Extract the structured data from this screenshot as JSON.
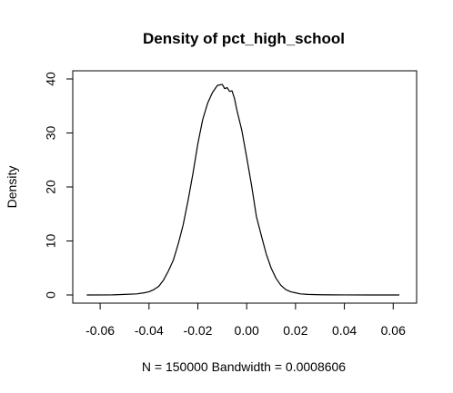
{
  "chart_data": {
    "type": "line",
    "title": "Density of pct_high_school",
    "xlabel": "N = 150000   Bandwidth = 0.0008606",
    "ylabel": "Density",
    "xlim": [
      -0.066,
      0.064
    ],
    "ylim": [
      0,
      40
    ],
    "x_ticks": [
      -0.06,
      -0.04,
      -0.02,
      0.0,
      0.02,
      0.04,
      0.06
    ],
    "x_tick_labels": [
      "-0.06",
      "-0.04",
      "-0.02",
      "0.00",
      "0.02",
      "0.04",
      "0.06"
    ],
    "y_ticks": [
      0,
      10,
      20,
      30,
      40
    ],
    "y_tick_labels": [
      "0",
      "10",
      "20",
      "30",
      "40"
    ],
    "grid": false,
    "series": [
      {
        "x": [
          -0.0655,
          -0.055,
          -0.05,
          -0.045,
          -0.042,
          -0.04,
          -0.038,
          -0.036,
          -0.034,
          -0.032,
          -0.03,
          -0.028,
          -0.026,
          -0.024,
          -0.022,
          -0.02,
          -0.018,
          -0.016,
          -0.014,
          -0.012,
          -0.01,
          -0.009,
          -0.008,
          -0.007,
          -0.006,
          -0.005,
          -0.004,
          -0.002,
          0.0,
          0.002,
          0.004,
          0.006,
          0.008,
          0.01,
          0.012,
          0.014,
          0.016,
          0.018,
          0.02,
          0.022,
          0.025,
          0.03,
          0.035,
          0.04,
          0.05,
          0.0625
        ],
        "y": [
          0,
          0.02,
          0.1,
          0.2,
          0.4,
          0.6,
          1.0,
          1.6,
          2.8,
          4.5,
          6.5,
          9.5,
          13.0,
          17.5,
          22.5,
          28.0,
          32.5,
          35.5,
          37.5,
          38.8,
          39.0,
          38.2,
          38.4,
          37.7,
          37.8,
          36.4,
          34.2,
          30.5,
          25.5,
          20.3,
          14.5,
          11.0,
          7.6,
          5.0,
          3.1,
          1.8,
          1.0,
          0.6,
          0.4,
          0.2,
          0.1,
          0.04,
          0.02,
          0.01,
          0.005,
          0
        ]
      }
    ]
  }
}
